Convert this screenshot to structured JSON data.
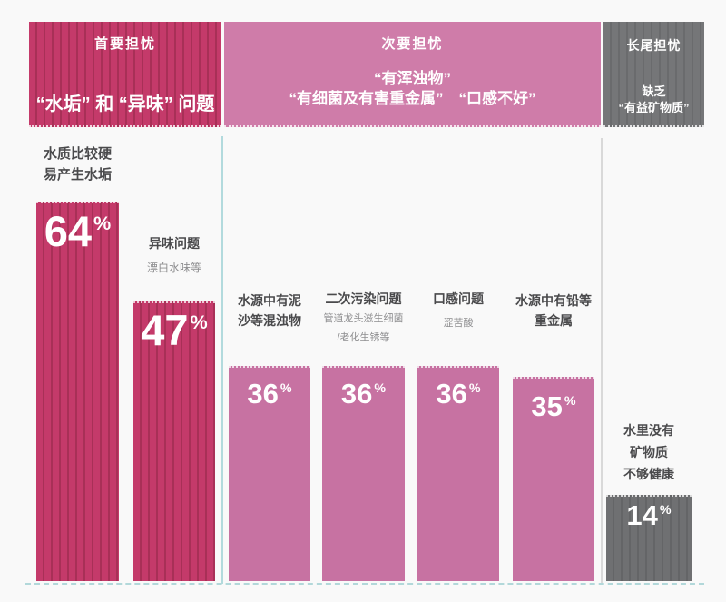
{
  "chart_data": {
    "type": "bar",
    "unit": "%",
    "ylim": [
      0,
      100
    ],
    "grid": false,
    "legend": "none",
    "groups": [
      {
        "title": "首要担忧",
        "subtitle_lines": [
          "“水垢” 和 “异味” 问题"
        ],
        "color": "#c43a6a",
        "striped": true
      },
      {
        "title": "次要担忧",
        "subtitle_lines": [
          "“有浑浊物”",
          "“有细菌及有害重金属”　“口感不好”"
        ],
        "color": "#cf7ca9",
        "striped": false
      },
      {
        "title": "长尾担忧",
        "subtitle_lines": [
          "缺乏",
          "“有益矿物质”"
        ],
        "color": "#757678",
        "striped": true
      }
    ],
    "bars": [
      {
        "group": "首要担忧",
        "label_lines": [
          "水质比较硬",
          "易产生水垢"
        ],
        "sublabel_lines": [],
        "value": 64,
        "color": "#c43a6a",
        "striped": true
      },
      {
        "group": "首要担忧",
        "label_lines": [
          "异味问题"
        ],
        "sublabel_lines": [
          "漂白水味等"
        ],
        "value": 47,
        "color": "#c43a6a",
        "striped": true
      },
      {
        "group": "次要担忧",
        "label_lines": [
          "水源中有泥",
          "沙等混浊物"
        ],
        "sublabel_lines": [],
        "value": 36,
        "color": "#c772a2",
        "striped": false
      },
      {
        "group": "次要担忧",
        "label_lines": [
          "二次污染问题"
        ],
        "sublabel_lines": [
          "管道龙头滋生细菌",
          "/老化生锈等"
        ],
        "value": 36,
        "color": "#c772a2",
        "striped": false
      },
      {
        "group": "次要担忧",
        "label_lines": [
          "口感问题"
        ],
        "sublabel_lines": [
          "涩苦酸"
        ],
        "value": 36,
        "color": "#c772a2",
        "striped": false
      },
      {
        "group": "次要担忧",
        "label_lines": [
          "水源中有铅等",
          "重金属"
        ],
        "sublabel_lines": [],
        "value": 35,
        "color": "#c772a2",
        "striped": false
      },
      {
        "group": "长尾担忧",
        "label_lines": [
          "水里没有",
          "矿物质",
          "不够健康"
        ],
        "sublabel_lines": [],
        "value": 14,
        "color": "#6f7072",
        "striped": true
      }
    ],
    "colors": {
      "background": "#f9f9f9",
      "primary_bar": "#c43a6a",
      "primary_stripe": "#a83057",
      "secondary_bar": "#c772a2",
      "secondary_header": "#cf7ca9",
      "longtail_bar": "#6f7072",
      "longtail_header": "#757678",
      "divider_teal": "#b2dadd",
      "divider_gray": "#d9d9d9",
      "axis_dash": "#b2d8da",
      "label_dark": "#4a4a4c",
      "label_gray": "#8e8e90",
      "value_text": "#ffffff"
    }
  }
}
